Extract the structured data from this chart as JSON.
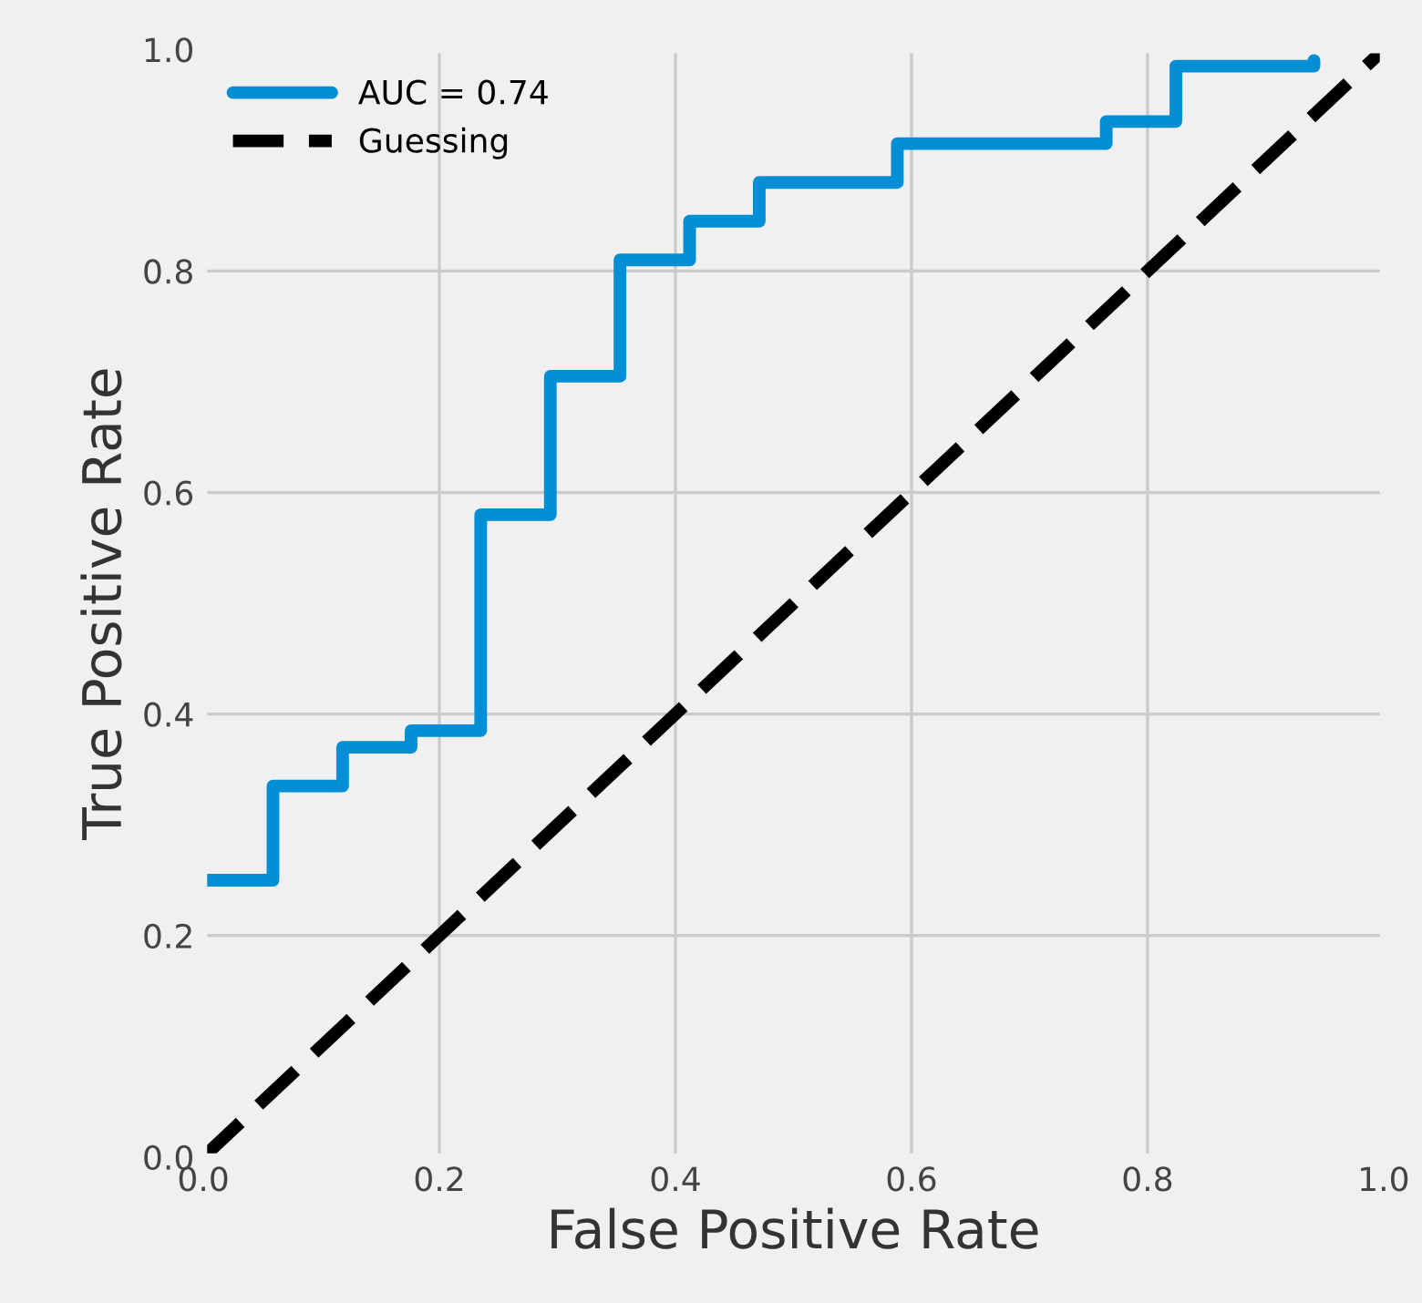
{
  "chart_data": {
    "type": "step",
    "xlabel": "False Positive Rate",
    "ylabel": "True Positive Rate",
    "xlim": [
      0,
      1
    ],
    "ylim": [
      0,
      1
    ],
    "xticks": [
      {
        "value": 0,
        "label": "0.0"
      },
      0.2,
      0.4,
      0.6,
      0.8,
      {
        "value": 1.0,
        "label": "1.0"
      }
    ],
    "yticks": [
      {
        "value": 0,
        "label": "0.0"
      },
      0.2,
      0.4,
      0.6,
      0.8,
      {
        "value": 1.0,
        "label": "1.0"
      }
    ],
    "grid": true,
    "legend": "top left",
    "series": [
      {
        "name": "AUC = 0.74",
        "color": "#008fd5",
        "line_style": "solid",
        "x": [
          0,
          0.059,
          0.118,
          0.176,
          0.235,
          0.294,
          0.353,
          0.412,
          0.471,
          0.588,
          0.765,
          0.824,
          0.941
        ],
        "values": [
          0.25,
          0.335,
          0.37,
          0.385,
          0.58,
          0.705,
          0.81,
          0.845,
          0.88,
          0.915,
          0.935,
          0.985,
          0.99
        ]
      },
      {
        "name": "Guessing",
        "color": "#000000",
        "type": "line",
        "line_style": "dashed",
        "x": [
          0,
          1
        ],
        "values": [
          0,
          1
        ]
      }
    ]
  }
}
